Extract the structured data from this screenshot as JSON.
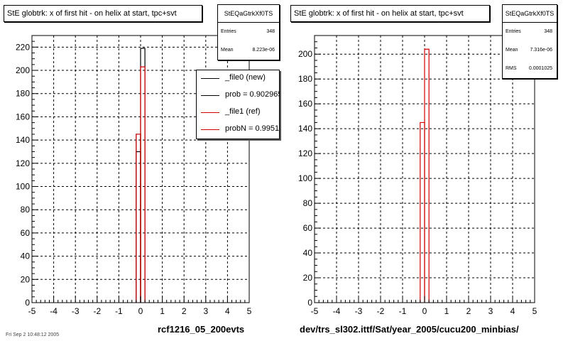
{
  "footnote": "Fri Sep  2 10:48:12 2005",
  "chart_data": [
    {
      "type": "histogram",
      "title": "StE globtrk: x of first hit - on helix at start, tpc+svt",
      "caption": "rcf1216_05_200evts",
      "stats": {
        "name": "StEQaGtrkXf0TS",
        "entries_label": "Entries",
        "entries": "348",
        "mean_label": "Mean",
        "mean": "8.223e-06"
      },
      "legend": [
        {
          "label": "_file0 (new)",
          "color": "#000000"
        },
        {
          "label": "prob = 0.902965",
          "color": "#000000"
        },
        {
          "label": "_file1 (ref)",
          "color": "#d00000"
        },
        {
          "label": "probN = 0.995138",
          "color": "#d00000"
        }
      ],
      "xlim": [
        -5,
        5
      ],
      "ylim": [
        0,
        230
      ],
      "xticks": [
        "-5",
        "-4",
        "-3",
        "-2",
        "-1",
        "0",
        "1",
        "2",
        "3",
        "4",
        "5"
      ],
      "yticks": [
        "0",
        "20",
        "40",
        "60",
        "80",
        "100",
        "120",
        "140",
        "160",
        "180",
        "200",
        "220"
      ],
      "bin_width": 0.2,
      "series": [
        {
          "name": "_file0 (new)",
          "color": "#000000",
          "bins": [
            {
              "x": -0.2,
              "y": 130
            },
            {
              "x": -0.2,
              "y": 145
            },
            {
              "x": 0.0,
              "y": 219
            }
          ]
        },
        {
          "name": "_file1 (ref)",
          "color": "#d00000",
          "bins": [
            {
              "x": -0.2,
              "y": 145
            },
            {
              "x": 0.0,
              "y": 203
            }
          ]
        }
      ]
    },
    {
      "type": "histogram",
      "title": "StE globtrk: x of first hit - on helix at start, tpc+svt",
      "caption": "dev/trs_sl302.ittf/Sat/year_2005/cucu200_minbias/",
      "stats": {
        "name": "StEQaGtrkXf0TS",
        "entries_label": "Entries",
        "entries": "348",
        "mean_label": "Mean",
        "mean": "7.316e-06",
        "rms_label": "RMS",
        "rms": "0.0001025"
      },
      "xlim": [
        -5,
        5
      ],
      "ylim": [
        0,
        215
      ],
      "xticks": [
        "-5",
        "-4",
        "-3",
        "-2",
        "-1",
        "0",
        "1",
        "2",
        "3",
        "4",
        "5"
      ],
      "yticks": [
        "0",
        "20",
        "40",
        "60",
        "80",
        "100",
        "120",
        "140",
        "160",
        "180",
        "200"
      ],
      "bin_width": 0.2,
      "series": [
        {
          "name": "",
          "color": "#d00000",
          "bins": [
            {
              "x": -0.2,
              "y": 145
            },
            {
              "x": 0.0,
              "y": 204
            }
          ]
        }
      ]
    }
  ]
}
